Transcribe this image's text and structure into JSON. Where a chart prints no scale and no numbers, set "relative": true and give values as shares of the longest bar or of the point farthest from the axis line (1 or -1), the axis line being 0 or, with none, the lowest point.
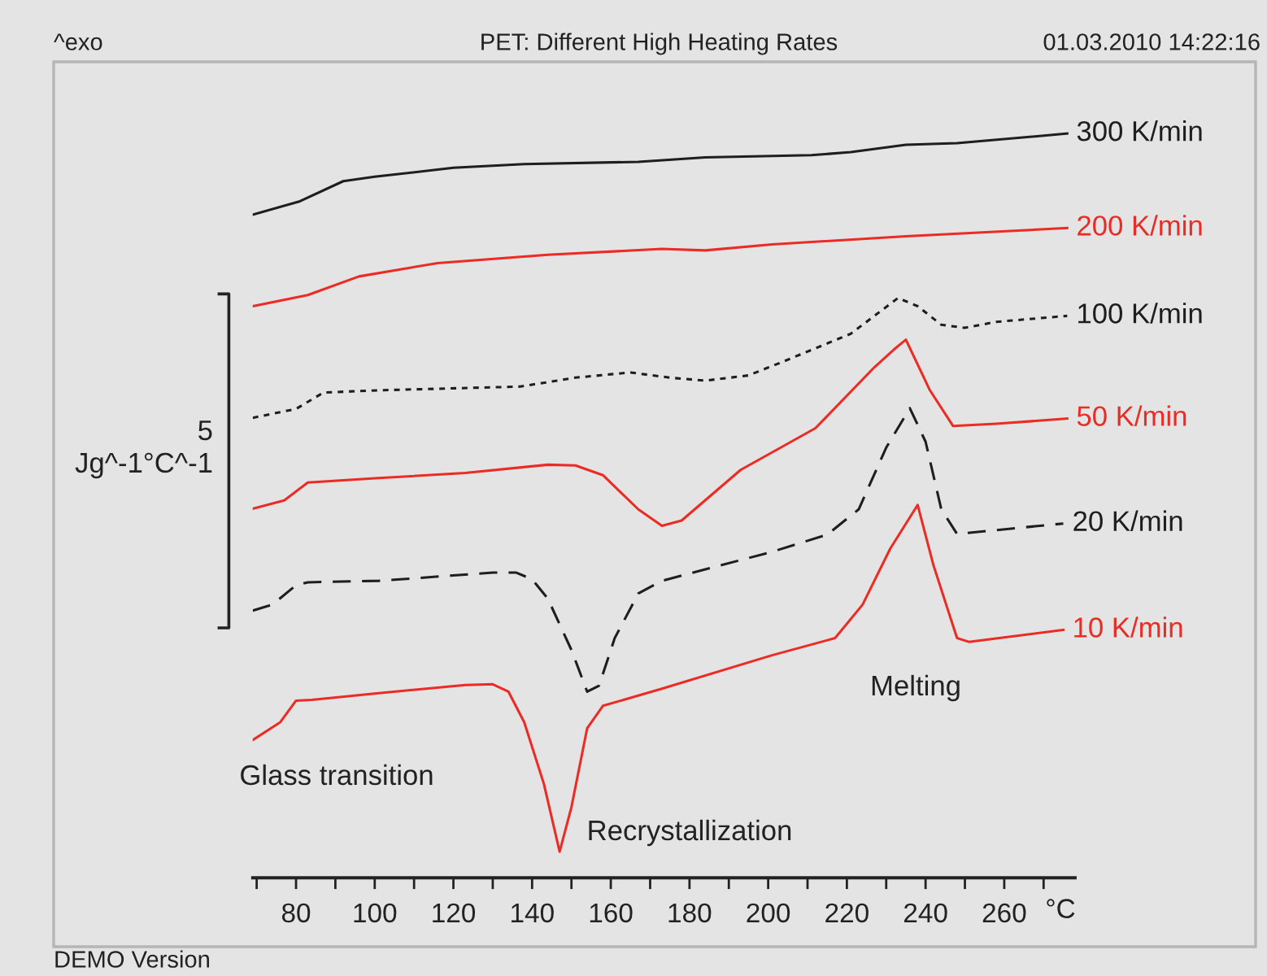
{
  "chart_data": {
    "type": "line",
    "title": "PET: Different High Heating Rates",
    "xlabel": "°C",
    "ylabel": "5\nJg^-1°C^-1",
    "relative": true,
    "xlim": [
      69,
      278
    ],
    "xticks": [
      {
        "value": 70,
        "label": null
      },
      80,
      {
        "value": 90,
        "label": null
      },
      100,
      {
        "value": 110,
        "label": null
      },
      120,
      {
        "value": 130,
        "label": null
      },
      140,
      {
        "value": 150,
        "label": null
      },
      160,
      {
        "value": 170,
        "label": null
      },
      180,
      {
        "value": 190,
        "label": null
      },
      200,
      {
        "value": 210,
        "label": null
      },
      220,
      {
        "value": 230,
        "label": null
      },
      240,
      {
        "value": 250,
        "label": null
      },
      260,
      {
        "value": 270,
        "label": null
      }
    ],
    "series": [
      {
        "name": "300 K/min",
        "color": "#1e1e1e",
        "line_style": "solid",
        "x": [
          69,
          81,
          92,
          100,
          120,
          138,
          167,
          184,
          211,
          221,
          235,
          248,
          276
        ],
        "values": [
          0.891,
          0.909,
          0.936,
          0.942,
          0.954,
          0.959,
          0.962,
          0.968,
          0.971,
          0.975,
          0.985,
          0.987,
          1.0
        ]
      },
      {
        "name": "200 K/min",
        "color": "#ec2b25",
        "line_style": "solid",
        "x": [
          69,
          83,
          96,
          116,
          144,
          173,
          184,
          201,
          235,
          276
        ],
        "values": [
          0.768,
          0.783,
          0.808,
          0.826,
          0.837,
          0.845,
          0.843,
          0.851,
          0.862,
          0.873
        ]
      },
      {
        "name": "100 K/min",
        "color": "#1e1e1e",
        "line_style": "dotted",
        "x": [
          69,
          80,
          87,
          101,
          137,
          151,
          165,
          175,
          184,
          195,
          204,
          221,
          233,
          238,
          244,
          250,
          258,
          276
        ],
        "values": [
          0.618,
          0.63,
          0.652,
          0.655,
          0.66,
          0.672,
          0.679,
          0.672,
          0.668,
          0.675,
          0.694,
          0.731,
          0.779,
          0.768,
          0.743,
          0.739,
          0.747,
          0.755
        ]
      },
      {
        "name": "50 K/min",
        "color": "#ec2b25",
        "line_style": "solid",
        "x": [
          69,
          77,
          83,
          101,
          123,
          144,
          151,
          158,
          167,
          173,
          178,
          193,
          212,
          227,
          232,
          235,
          241,
          247,
          258,
          276
        ],
        "values": [
          0.496,
          0.507,
          0.531,
          0.537,
          0.544,
          0.555,
          0.554,
          0.541,
          0.495,
          0.473,
          0.48,
          0.548,
          0.604,
          0.686,
          0.71,
          0.723,
          0.656,
          0.607,
          0.61,
          0.617
        ]
      },
      {
        "name": "20 K/min",
        "color": "#1e1e1e",
        "line_style": "dashed",
        "x": [
          69,
          74,
          80,
          83,
          101,
          130,
          136,
          140,
          144,
          150,
          154,
          157,
          161,
          167,
          173,
          201,
          215,
          223,
          230,
          236,
          240,
          244,
          248,
          275
        ],
        "values": [
          0.359,
          0.367,
          0.393,
          0.397,
          0.399,
          0.41,
          0.41,
          0.401,
          0.375,
          0.306,
          0.25,
          0.258,
          0.322,
          0.382,
          0.399,
          0.438,
          0.461,
          0.495,
          0.578,
          0.631,
          0.586,
          0.495,
          0.462,
          0.476
        ]
      },
      {
        "name": "10 K/min",
        "color": "#ec2b25",
        "line_style": "solid",
        "x": [
          69,
          76,
          80,
          84,
          101,
          123,
          130,
          134,
          138,
          143,
          147,
          150,
          154,
          158,
          173,
          201,
          217,
          224,
          231,
          238,
          242,
          248,
          251,
          275
        ],
        "values": [
          0.185,
          0.209,
          0.238,
          0.239,
          0.248,
          0.259,
          0.26,
          0.25,
          0.209,
          0.126,
          0.035,
          0.095,
          0.201,
          0.231,
          0.254,
          0.299,
          0.322,
          0.367,
          0.442,
          0.501,
          0.42,
          0.322,
          0.317,
          0.333
        ]
      }
    ],
    "annotations": [
      "^exo",
      "01.03.2010 14:22:16",
      "DEMO Version",
      "Glass transition",
      "Recrystallization",
      "Melting"
    ]
  }
}
